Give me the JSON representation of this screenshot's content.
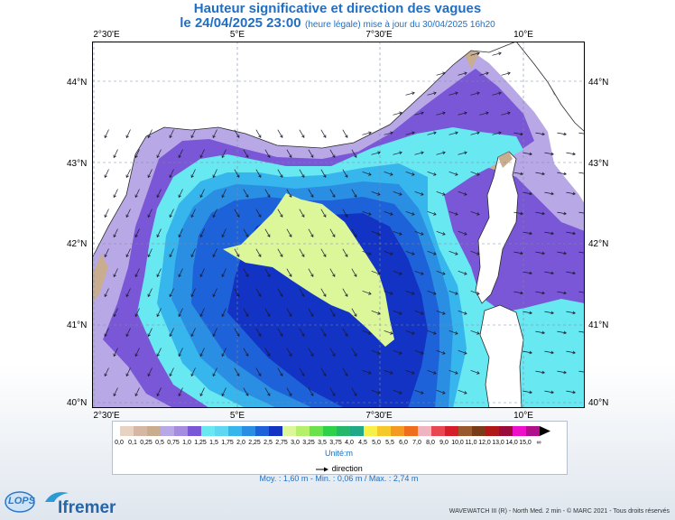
{
  "title": "Hauteur significative et direction des vagues",
  "subtitle_date": "le 24/04/2025 23:00",
  "subtitle_note": "(heure légale) mise à jour du 30/04/2025 16h20",
  "lon_labels": [
    "2°30'E",
    "5°E",
    "7°30'E",
    "10°E"
  ],
  "lat_labels": [
    "44°N",
    "43°N",
    "42°N",
    "41°N",
    "40°N"
  ],
  "legend": {
    "labels": [
      "0,0",
      "0,1",
      "0,25",
      "0,5",
      "0,75",
      "1,0",
      "1,25",
      "1,5",
      "1,75",
      "2,0",
      "2,25",
      "2,5",
      "2,75",
      "3,0",
      "3,25",
      "3,5",
      "3,75",
      "4,0",
      "4,5",
      "5,0",
      "5,5",
      "6,0",
      "7,0",
      "8,0",
      "9,0",
      "10,0",
      "11,0",
      "12,0",
      "13,0",
      "14,0",
      "15,0",
      "∞"
    ],
    "colors": [
      "#e8d3c2",
      "#d6b7a3",
      "#c8ad8e",
      "#b9a8e6",
      "#a58ce0",
      "#7a57d6",
      "#68e8f0",
      "#5fd6f2",
      "#36b6ec",
      "#2a8ee3",
      "#1d62d8",
      "#1233c4",
      "#dcf79a",
      "#b4f06a",
      "#6be24c",
      "#2fd04a",
      "#25b86a",
      "#21a888",
      "#f6f04a",
      "#f6c82a",
      "#f49a22",
      "#ee6e1e",
      "#f0b4c0",
      "#e84650",
      "#d61e2a",
      "#9a5a2e",
      "#7a3c18",
      "#b01818",
      "#9a0a3a",
      "#ec10c8",
      "#b0108a"
    ],
    "units": "Unité:m",
    "direction_label": "direction"
  },
  "stats": "Moy. : 1,60 m   -   Min. : 0,06 m / Max. : 2,74 m",
  "footer": "WAVEWATCH III (R) - North Med. 2 min - © MARC 2021 - Tous droits réservés",
  "logos": {
    "lops": "LOPS",
    "ifremer": "Ifremer"
  },
  "map": {
    "level_colors": {
      "land": "#ffffff",
      "coast": "#c8ad8e",
      "0_75": "#b9a8e6",
      "1_0": "#7a57d6",
      "1_25": "#68e8f0",
      "1_75": "#36b6ec",
      "2_0": "#2a8ee3",
      "2_25": "#1d62d8",
      "2_5": "#1233c4",
      "2_75": "#dcf79a"
    },
    "icons": [
      "wave-direction-arrow-icon",
      "triangle-arrow-icon"
    ]
  }
}
